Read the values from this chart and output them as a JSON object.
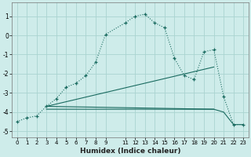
{
  "xlabel": "Humidex (Indice chaleur)",
  "bg_color": "#ceecea",
  "grid_color": "#aad4d0",
  "line_color": "#1a6b60",
  "xlim": [
    -0.5,
    23.5
  ],
  "ylim": [
    -5.3,
    1.7
  ],
  "yticks": [
    -5,
    -4,
    -3,
    -2,
    -1,
    0,
    1
  ],
  "xticks": [
    0,
    1,
    2,
    3,
    4,
    5,
    6,
    7,
    8,
    9,
    11,
    12,
    13,
    14,
    15,
    16,
    17,
    18,
    19,
    20,
    21,
    22,
    23
  ],
  "line1_x": [
    0,
    1,
    2,
    3,
    4,
    5,
    6,
    7,
    8,
    9,
    11,
    12,
    13,
    14,
    15,
    16,
    17,
    18,
    19,
    20,
    21,
    22,
    23
  ],
  "line1_y": [
    -4.5,
    -4.3,
    -4.2,
    -3.7,
    -3.3,
    -2.7,
    -2.5,
    -2.1,
    -1.4,
    0.05,
    0.65,
    1.0,
    1.1,
    0.65,
    0.4,
    -1.2,
    -2.1,
    -2.3,
    -0.85,
    -0.75,
    -3.2,
    -4.65,
    -4.65
  ],
  "line2_x": [
    3,
    9,
    20,
    21,
    22,
    23
  ],
  "line2_y": [
    -3.85,
    -3.85,
    -3.85,
    -4.0,
    -4.65,
    -4.65
  ],
  "line3_x": [
    3,
    20
  ],
  "line3_y": [
    -3.7,
    -1.65
  ],
  "line4_x": [
    3,
    20
  ],
  "line4_y": [
    -3.7,
    -3.85
  ]
}
